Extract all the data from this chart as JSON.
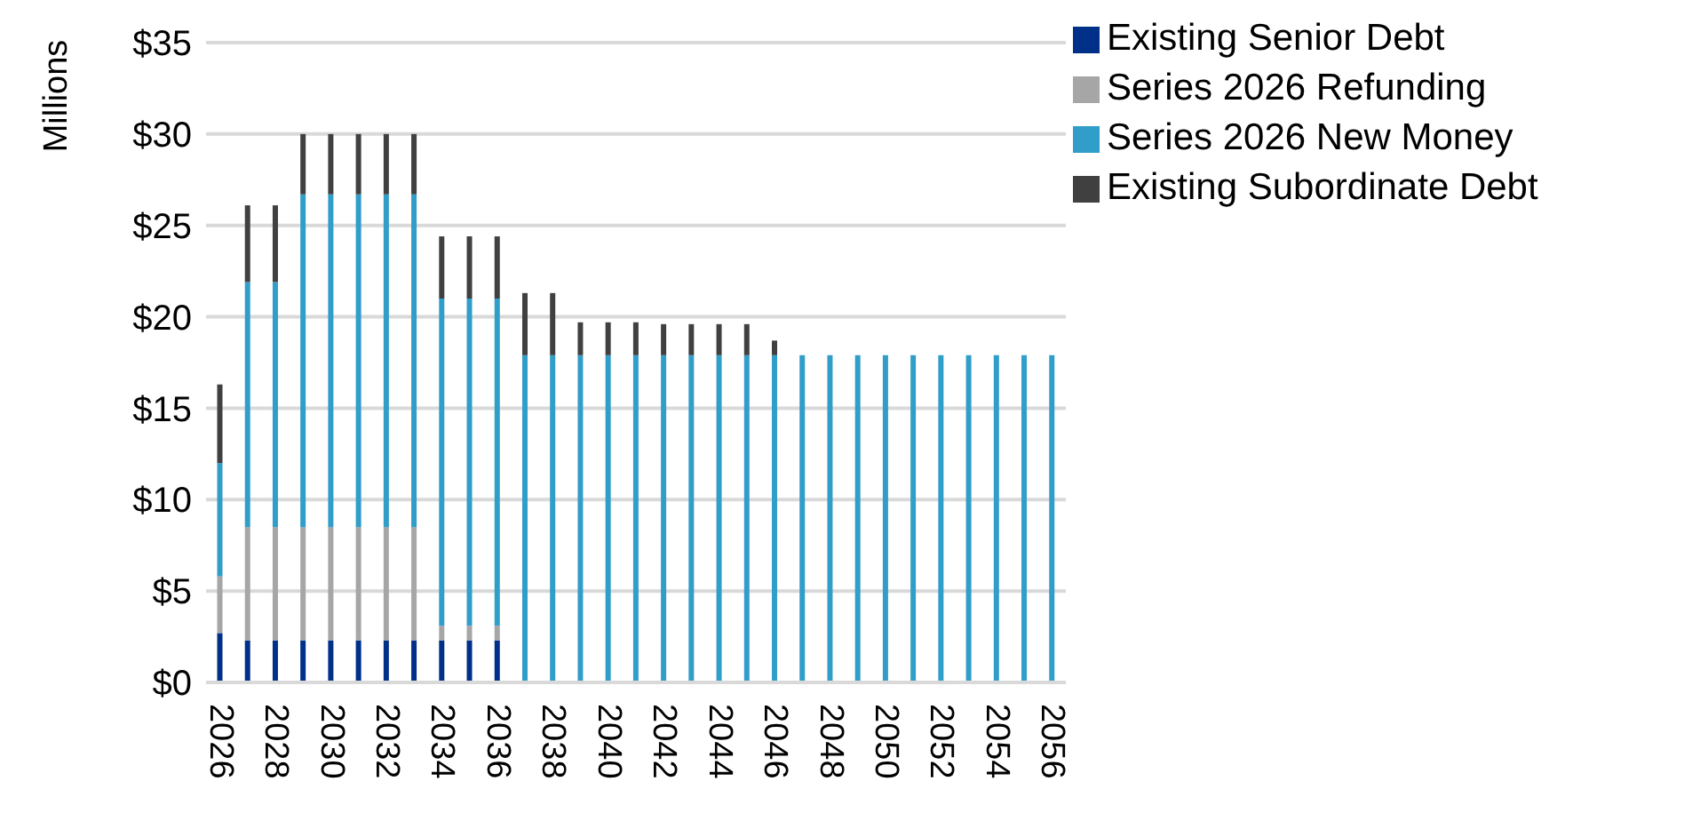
{
  "chart_data": {
    "type": "bar",
    "stacked": true,
    "ylabel": "Millions",
    "categories": [
      "2026",
      null,
      "2028",
      null,
      "2030",
      null,
      "2032",
      null,
      "2034",
      null,
      "2036",
      null,
      "2038",
      null,
      "2040",
      null,
      "2042",
      null,
      "2044",
      null,
      "2046",
      null,
      "2048",
      null,
      "2050",
      null,
      "2052",
      null,
      "2054",
      null,
      "2056"
    ],
    "series": [
      {
        "name": "Existing Senior Debt",
        "color": "#003087",
        "values": [
          2.7,
          2.3,
          2.3,
          2.3,
          2.3,
          2.3,
          2.3,
          2.3,
          2.3,
          2.3,
          2.3,
          0,
          0,
          0,
          0,
          0,
          0,
          0,
          0,
          0,
          0,
          0,
          0,
          0,
          0,
          0,
          0,
          0,
          0,
          0,
          0
        ]
      },
      {
        "name": "Series 2026 Refunding",
        "color": "#a6a6a6",
        "values": [
          3.1,
          6.2,
          6.2,
          6.2,
          6.2,
          6.2,
          6.2,
          6.2,
          0.8,
          0.8,
          0.8,
          0,
          0,
          0,
          0,
          0,
          0,
          0,
          0,
          0,
          0,
          0,
          0,
          0,
          0,
          0,
          0,
          0,
          0,
          0,
          0
        ]
      },
      {
        "name": "Series 2026 New Money",
        "color": "#319dc9",
        "values": [
          6.2,
          13.4,
          13.4,
          18.2,
          18.2,
          18.2,
          18.2,
          18.2,
          17.9,
          17.9,
          17.9,
          17.9,
          17.9,
          17.9,
          17.9,
          17.9,
          17.9,
          17.9,
          17.9,
          17.9,
          17.9,
          17.9,
          17.9,
          17.9,
          17.9,
          17.9,
          17.9,
          17.9,
          17.9,
          17.9,
          17.9
        ]
      },
      {
        "name": "Existing Subordinate Debt",
        "color": "#404040",
        "values": [
          4.3,
          4.2,
          4.2,
          3.3,
          3.3,
          3.3,
          3.3,
          3.3,
          3.4,
          3.4,
          3.4,
          3.4,
          3.4,
          1.8,
          1.8,
          1.8,
          1.7,
          1.7,
          1.7,
          1.7,
          0.8,
          0,
          0,
          0,
          0,
          0,
          0,
          0,
          0,
          0,
          0
        ]
      }
    ],
    "ylim": [
      0,
      35
    ],
    "yticks": [
      {
        "value": 0,
        "label": "$0"
      },
      {
        "value": 5,
        "label": "$5"
      },
      {
        "value": 10,
        "label": "$10"
      },
      {
        "value": 15,
        "label": "$15"
      },
      {
        "value": 20,
        "label": "$20"
      },
      {
        "value": 25,
        "label": "$25"
      },
      {
        "value": 30,
        "label": "$30"
      },
      {
        "value": 35,
        "label": "$35"
      }
    ],
    "grid": "y",
    "legend": "top right"
  }
}
